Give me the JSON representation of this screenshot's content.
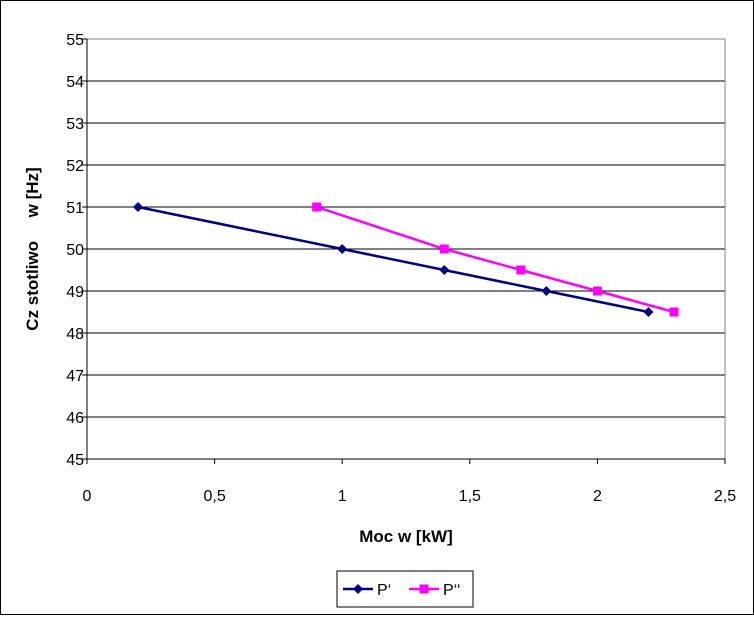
{
  "chart_data": {
    "type": "line",
    "title": "",
    "xlabel": "Moc w [kW]",
    "ylabel": "Cz stotliwo     w [Hz]",
    "xlim": [
      0,
      2.5
    ],
    "ylim": [
      45,
      55
    ],
    "x_ticks": [
      "0",
      "0,5",
      "1",
      "1,5",
      "2",
      "2,5"
    ],
    "y_ticks": [
      "45",
      "46",
      "47",
      "48",
      "49",
      "50",
      "51",
      "52",
      "53",
      "54",
      "55"
    ],
    "grid": "horizontal",
    "legend_position": "bottom",
    "series": [
      {
        "name": "P‘",
        "color": "#000080",
        "marker": "diamond",
        "x": [
          0.2,
          1.0,
          1.4,
          1.8,
          2.2
        ],
        "y": [
          51.0,
          50.0,
          49.5,
          49.0,
          48.5
        ]
      },
      {
        "name": "P‘‘",
        "color": "#FF00FF",
        "marker": "square",
        "x": [
          0.9,
          1.4,
          1.7,
          2.0,
          2.3
        ],
        "y": [
          51.0,
          50.0,
          49.5,
          49.0,
          48.5
        ]
      }
    ]
  }
}
